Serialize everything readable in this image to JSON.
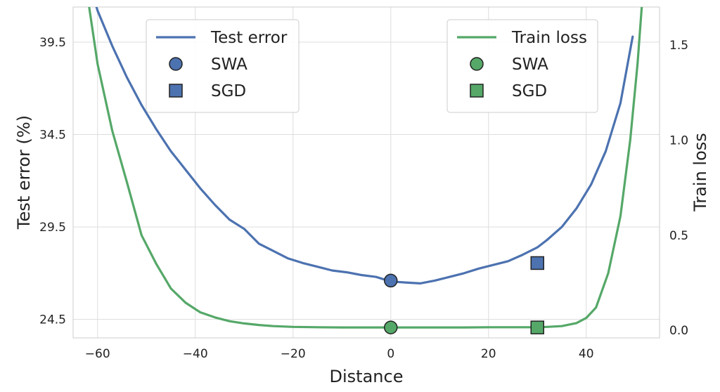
{
  "chart_data": {
    "type": "line",
    "xlabel": "Distance",
    "ylabel_left": "Test error (%)",
    "ylabel_right": "Train loss",
    "xlim": [
      -65,
      55
    ],
    "ylim_left": [
      23.5,
      41.4
    ],
    "ylim_right": [
      -0.04,
      1.7
    ],
    "x_ticks": [
      -60,
      -40,
      -20,
      0,
      20,
      40
    ],
    "x_tick_labels": [
      "−60",
      "−40",
      "−20",
      "0",
      "20",
      "40"
    ],
    "y_left_ticks": [
      24.5,
      29.5,
      34.5,
      39.5
    ],
    "y_left_tick_labels": [
      "24.5",
      "29.5",
      "34.5",
      "39.5"
    ],
    "y_right_ticks": [
      0.0,
      0.5,
      1.0,
      1.5
    ],
    "y_right_tick_labels": [
      "0.0",
      "0.5",
      "1.0",
      "1.5"
    ],
    "grid": true,
    "series": [
      {
        "name": "Test error",
        "axis": "left",
        "color": "#4c72b0",
        "x": [
          -62,
          -60,
          -57,
          -54,
          -51,
          -48,
          -45,
          -42,
          -39,
          -36,
          -33,
          -30,
          -27,
          -24,
          -21,
          -18,
          -15,
          -12,
          -9,
          -6,
          -3,
          0,
          3,
          6,
          9,
          12,
          15,
          18,
          21,
          24,
          27,
          30,
          32,
          35,
          38,
          41,
          44,
          47,
          49.5
        ],
        "values": [
          43.0,
          41.2,
          39.3,
          37.6,
          36.1,
          34.8,
          33.6,
          32.6,
          31.6,
          30.7,
          29.9,
          29.4,
          28.6,
          28.2,
          27.8,
          27.55,
          27.35,
          27.15,
          27.05,
          26.9,
          26.8,
          26.55,
          26.5,
          26.45,
          26.6,
          26.8,
          27.0,
          27.25,
          27.45,
          27.65,
          28.0,
          28.4,
          28.8,
          29.5,
          30.5,
          31.8,
          33.6,
          36.2,
          39.8
        ]
      },
      {
        "name": "Train loss",
        "axis": "right",
        "color": "#55a868",
        "x": [
          -62,
          -60,
          -57,
          -54,
          -51,
          -48,
          -45,
          -42,
          -39,
          -36,
          -33,
          -30,
          -27,
          -24,
          -20,
          -15,
          -10,
          -5,
          0,
          5,
          10,
          15,
          20,
          25,
          30,
          32,
          35,
          38,
          40,
          42,
          44.5,
          47,
          49,
          50.5,
          51.5
        ],
        "values": [
          1.75,
          1.4,
          1.05,
          0.78,
          0.5,
          0.35,
          0.22,
          0.145,
          0.095,
          0.068,
          0.048,
          0.036,
          0.028,
          0.022,
          0.018,
          0.016,
          0.015,
          0.015,
          0.015,
          0.015,
          0.015,
          0.015,
          0.016,
          0.016,
          0.016,
          0.018,
          0.022,
          0.038,
          0.065,
          0.12,
          0.3,
          0.6,
          1.0,
          1.4,
          1.75
        ]
      }
    ],
    "markers": [
      {
        "label": "SWA",
        "group": "Test error",
        "shape": "circle",
        "x": 0,
        "value": 26.6,
        "axis": "left",
        "color": "#4c72b0"
      },
      {
        "label": "SGD",
        "group": "Test error",
        "shape": "square",
        "x": 30,
        "value": 27.55,
        "axis": "left",
        "color": "#4c72b0"
      },
      {
        "label": "SWA",
        "group": "Train loss",
        "shape": "circle",
        "x": 0,
        "value": 0.015,
        "axis": "right",
        "color": "#55a868"
      },
      {
        "label": "SGD",
        "group": "Train loss",
        "shape": "square",
        "x": 30,
        "value": 0.015,
        "axis": "right",
        "color": "#55a868"
      }
    ],
    "legends": [
      {
        "placement": "top-left",
        "entries": [
          {
            "kind": "line",
            "label": "Test error",
            "color": "#4c72b0"
          },
          {
            "kind": "circle",
            "label": "SWA",
            "color": "#4c72b0"
          },
          {
            "kind": "square",
            "label": "SGD",
            "color": "#4c72b0"
          }
        ]
      },
      {
        "placement": "top-right",
        "entries": [
          {
            "kind": "line",
            "label": "Train loss",
            "color": "#55a868"
          },
          {
            "kind": "circle",
            "label": "SWA",
            "color": "#55a868"
          },
          {
            "kind": "square",
            "label": "SGD",
            "color": "#55a868"
          }
        ]
      }
    ]
  }
}
